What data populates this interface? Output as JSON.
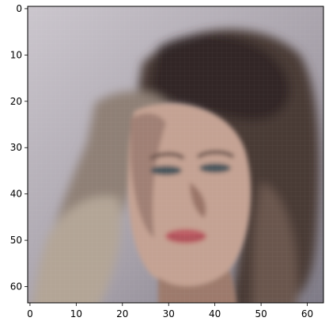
{
  "chart_data": {
    "type": "heatmap",
    "title": "",
    "xlabel": "",
    "ylabel": "",
    "description_of_content": "",
    "image_size": [
      64,
      64
    ],
    "xlim": [
      -0.5,
      63.5
    ],
    "ylim": [
      63.5,
      -0.5
    ],
    "x_ticks": [
      0,
      10,
      20,
      30,
      40,
      50,
      60
    ],
    "y_ticks": [
      0,
      10,
      20,
      30,
      40,
      50,
      60
    ],
    "grid": false,
    "legend": "none"
  },
  "palette": {
    "axes_frame": "#000000",
    "background_top": "#c8c1c8",
    "background_right": "#8a8590",
    "hair_dark": "#3c3030",
    "hair_mid": "#6e5a52",
    "hair_light": "#a89a8c",
    "skin": "#c7a394",
    "skin_shadow": "#8e6e66",
    "lips": "#b85c62",
    "eyes": "#3a4a52"
  }
}
